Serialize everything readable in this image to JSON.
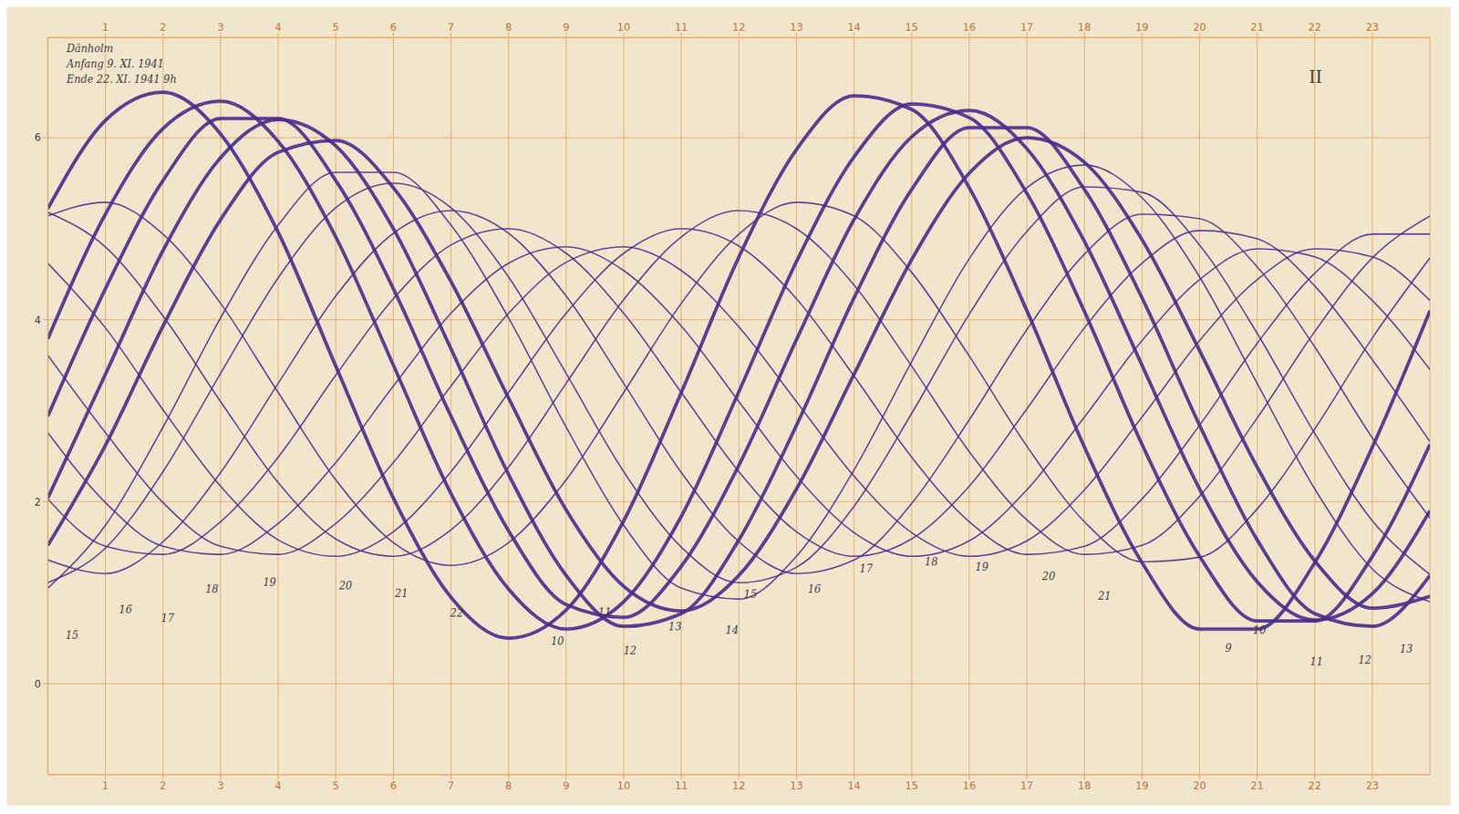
{
  "chart_data": {
    "type": "line",
    "title": "Dänholm",
    "texts": [
      "Anfang 9. XI. 1941",
      "Ende 22. XI. 1941 9h",
      "II"
    ],
    "x": [
      0,
      1,
      2,
      3,
      4,
      5,
      6,
      7,
      8,
      9,
      10,
      11,
      12,
      13,
      14,
      15,
      16,
      17,
      18,
      19,
      20,
      21,
      22,
      23,
      24
    ],
    "xlim": [
      0,
      24
    ],
    "xticks": [
      1,
      2,
      3,
      4,
      5,
      6,
      7,
      8,
      9,
      10,
      11,
      12,
      13,
      14,
      15,
      16,
      17,
      18,
      19,
      20,
      21,
      22,
      23
    ],
    "ylim": [
      -1,
      7.1
    ],
    "yticks": [
      0,
      2,
      4,
      6
    ],
    "grid": true,
    "color": "#4b2a8c",
    "series": [
      {
        "name": "9",
        "values": [
          5.22,
          6.19,
          6.5,
          6.04,
          4.96,
          3.49,
          2.04,
          0.95,
          0.5,
          0.81,
          1.79,
          3.2,
          4.69,
          5.87,
          6.46,
          6.31,
          5.45,
          4.1,
          2.6,
          1.33,
          0.6,
          0.6,
          1.33,
          2.6,
          4.1
        ]
      },
      {
        "name": "10",
        "values": [
          3.79,
          5.16,
          6.1,
          6.4,
          5.96,
          4.91,
          3.5,
          2.09,
          1.04,
          0.6,
          0.9,
          1.84,
          3.21,
          4.64,
          5.79,
          6.37,
          6.22,
          5.39,
          4.09,
          2.63,
          1.4,
          0.69,
          0.69,
          1.4,
          2.63
        ]
      },
      {
        "name": "11",
        "values": [
          2.94,
          4.34,
          5.53,
          6.21,
          6.21,
          5.53,
          4.34,
          2.94,
          1.68,
          0.87,
          0.73,
          1.29,
          2.4,
          3.78,
          5.1,
          6.01,
          6.3,
          5.88,
          4.86,
          3.5,
          2.14,
          1.12,
          0.7,
          0.99,
          1.9
        ]
      },
      {
        "name": "12",
        "values": [
          2.04,
          3.4,
          4.76,
          5.78,
          6.2,
          5.91,
          5.0,
          3.68,
          2.3,
          1.19,
          0.63,
          0.77,
          1.58,
          2.84,
          4.24,
          5.43,
          6.11,
          6.11,
          5.43,
          4.24,
          2.84,
          1.58,
          0.77,
          0.63,
          1.19
        ]
      },
      {
        "name": "13",
        "values": [
          1.52,
          2.62,
          3.93,
          5.1,
          5.84,
          5.97,
          5.45,
          4.42,
          3.14,
          1.91,
          1.07,
          0.8,
          1.19,
          2.14,
          3.4,
          4.66,
          5.61,
          6.0,
          5.73,
          4.88,
          3.66,
          2.38,
          1.35,
          0.83,
          0.96
        ]
      },
      {
        "name": "14",
        "values": [
          1.05,
          1.74,
          2.82,
          4.02,
          5.04,
          5.62,
          5.62,
          5.04,
          4.02,
          2.82,
          1.74,
          1.05,
          0.93,
          1.4,
          2.35,
          3.54,
          4.67,
          5.45,
          5.7,
          5.34,
          4.47,
          3.3,
          2.14,
          1.26,
          0.9
        ]
      },
      {
        "name": "15",
        "values": [
          1.11,
          1.49,
          2.33,
          3.41,
          4.46,
          5.23,
          5.5,
          5.23,
          4.47,
          3.41,
          2.33,
          1.5,
          1.11,
          1.28,
          1.95,
          2.97,
          4.06,
          4.97,
          5.46,
          5.4,
          4.82,
          3.85,
          2.75,
          1.79,
          1.2
        ]
      },
      {
        "name": "16",
        "values": [
          1.36,
          1.21,
          1.56,
          2.32,
          3.3,
          4.26,
          4.95,
          5.2,
          4.95,
          4.26,
          3.3,
          2.32,
          1.56,
          1.21,
          1.36,
          1.98,
          2.9,
          3.89,
          4.72,
          5.16,
          5.11,
          4.58,
          3.7,
          2.7,
          1.82
        ]
      },
      {
        "name": "17",
        "values": [
          2.03,
          1.51,
          1.42,
          1.78,
          2.49,
          3.39,
          4.23,
          4.82,
          5.0,
          4.73,
          4.07,
          3.2,
          2.33,
          1.67,
          1.4,
          1.59,
          2.17,
          3.02,
          3.91,
          4.62,
          4.98,
          4.89,
          4.37,
          3.56,
          2.66
        ]
      },
      {
        "name": "18",
        "values": [
          2.76,
          1.99,
          1.51,
          1.42,
          1.76,
          2.43,
          3.27,
          4.07,
          4.62,
          4.8,
          4.54,
          3.93,
          3.1,
          2.28,
          1.66,
          1.4,
          1.57,
          2.13,
          2.93,
          3.77,
          4.44,
          4.78,
          4.69,
          4.21,
          3.45
        ]
      },
      {
        "name": "19",
        "values": [
          3.61,
          2.76,
          1.99,
          1.51,
          1.42,
          1.76,
          2.43,
          3.27,
          4.07,
          4.63,
          4.8,
          4.54,
          3.92,
          3.1,
          2.28,
          1.66,
          1.4,
          1.57,
          2.13,
          2.93,
          3.77,
          4.44,
          4.78,
          4.69,
          4.21
        ]
      },
      {
        "name": "20",
        "values": [
          4.62,
          3.91,
          3.01,
          2.17,
          1.58,
          1.4,
          1.67,
          2.33,
          3.2,
          4.07,
          4.73,
          5.0,
          4.81,
          4.23,
          3.38,
          2.49,
          1.78,
          1.42,
          1.51,
          2.03,
          2.84,
          3.74,
          4.51,
          4.94,
          4.94
        ]
      },
      {
        "name": "21",
        "values": [
          5.18,
          4.8,
          4.04,
          3.1,
          2.21,
          1.59,
          1.4,
          1.69,
          2.38,
          3.3,
          4.22,
          4.91,
          5.2,
          5.0,
          4.38,
          3.49,
          2.55,
          1.8,
          1.42,
          1.52,
          2.06,
          2.92,
          3.87,
          4.68,
          5.14
        ]
      },
      {
        "name": "22",
        "values": [
          5.14,
          5.29,
          4.94,
          4.18,
          3.2,
          2.24,
          1.55,
          1.3,
          1.55,
          2.24,
          3.2,
          4.18,
          4.94,
          5.29,
          5.14,
          4.52,
          3.6,
          2.61,
          1.78,
          1.34,
          1.39,
          1.92,
          2.8,
          3.8,
          4.68
        ]
      }
    ],
    "annotations": [
      {
        "text": "15",
        "x": 0.42,
        "y": 0.53
      },
      {
        "text": "16",
        "x": 1.35,
        "y": 0.81
      },
      {
        "text": "17",
        "x": 2.08,
        "y": 0.72
      },
      {
        "text": "18",
        "x": 2.85,
        "y": 1.04
      },
      {
        "text": "19",
        "x": 3.85,
        "y": 1.11
      },
      {
        "text": "20",
        "x": 5.17,
        "y": 1.08
      },
      {
        "text": "21",
        "x": 6.14,
        "y": 0.99
      },
      {
        "text": "22",
        "x": 7.1,
        "y": 0.78
      },
      {
        "text": "10",
        "x": 8.85,
        "y": 0.47
      },
      {
        "text": "11",
        "x": 9.67,
        "y": 0.79
      },
      {
        "text": "12",
        "x": 10.11,
        "y": 0.36
      },
      {
        "text": "13",
        "x": 10.89,
        "y": 0.63
      },
      {
        "text": "14",
        "x": 11.88,
        "y": 0.59
      },
      {
        "text": "15",
        "x": 12.2,
        "y": 0.98
      },
      {
        "text": "16",
        "x": 13.31,
        "y": 1.04
      },
      {
        "text": "17",
        "x": 14.21,
        "y": 1.26
      },
      {
        "text": "18",
        "x": 15.34,
        "y": 1.34
      },
      {
        "text": "19",
        "x": 16.22,
        "y": 1.28
      },
      {
        "text": "20",
        "x": 17.38,
        "y": 1.18
      },
      {
        "text": "21",
        "x": 18.35,
        "y": 0.96
      },
      {
        "text": "9",
        "x": 20.5,
        "y": 0.39
      },
      {
        "text": "10",
        "x": 21.04,
        "y": 0.59
      },
      {
        "text": "11",
        "x": 22.03,
        "y": 0.24
      },
      {
        "text": "12",
        "x": 22.87,
        "y": 0.26
      },
      {
        "text": "13",
        "x": 23.59,
        "y": 0.38
      }
    ]
  }
}
